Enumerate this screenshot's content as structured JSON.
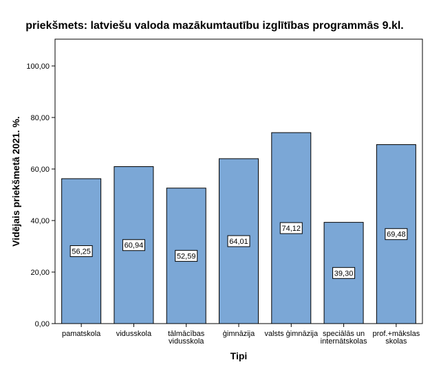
{
  "chart_data": {
    "type": "bar",
    "title": "priekšmets: latviešu valoda mazākumtautību izglītības programmās 9.kl.",
    "xlabel": "Tipi",
    "ylabel": "Vidējais priekšmetā 2021. %.",
    "ylim": [
      0,
      110
    ],
    "yticks": [
      0,
      20,
      40,
      60,
      80,
      100
    ],
    "ytick_labels": [
      "0,00",
      "20,00",
      "40,00",
      "60,00",
      "80,00",
      "100,00"
    ],
    "categories": [
      [
        "pamatskola"
      ],
      [
        "vidusskola"
      ],
      [
        "tālmācības",
        "vidusskola"
      ],
      [
        "ģimnāzija"
      ],
      [
        "valsts ģimnāzija"
      ],
      [
        "speciālās un",
        "internātskolas"
      ],
      [
        "prof.+mākslas",
        "skolas"
      ]
    ],
    "values": [
      56.25,
      60.94,
      52.59,
      64.01,
      74.12,
      39.3,
      69.48
    ],
    "value_labels": [
      "56,25",
      "60,94",
      "52,59",
      "64,01",
      "74,12",
      "39,30",
      "69,48"
    ],
    "bar_color": "#7ba7d6",
    "grid": false
  }
}
